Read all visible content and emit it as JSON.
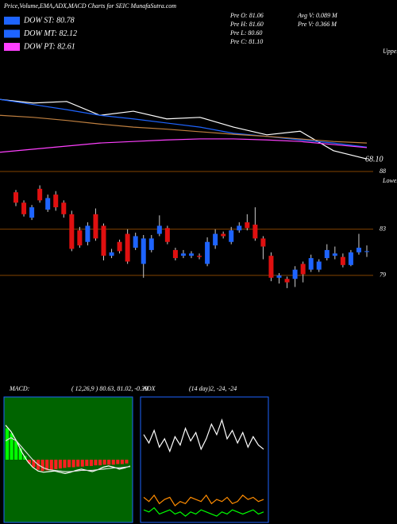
{
  "header": {
    "title": "Price,Volume,EMA,ADX,MACD Charts for SEIC MunafaSutra.com",
    "legend": [
      {
        "name": "DOW ST: 80.78",
        "color": "#1e64ff"
      },
      {
        "name": "DOW MT: 82.12",
        "color": "#1e64ff"
      },
      {
        "name": "DOW PT: 82.61",
        "color": "#ff40ff"
      }
    ],
    "stats": [
      "Pre O: 81.06",
      "Pre H: 81.60",
      "Pre L: 80.60",
      "Pre C: 81.10",
      "Avg V: 0.089 M",
      "Pre V: 0.366 M"
    ]
  },
  "chart_data": [
    {
      "type": "line",
      "label": "Upper",
      "annotation": "68.10",
      "ylim": [
        66,
        90
      ],
      "series": [
        {
          "color": "#ffffff",
          "values": [
            79.9,
            79.2,
            79.5,
            76.8,
            77.6,
            76.1,
            76.4,
            74.5,
            73.0,
            73.7,
            69.9,
            68.3
          ]
        },
        {
          "color": "#1e64ff",
          "values": [
            79.9,
            78.9,
            77.9,
            76.8,
            76.1,
            75.3,
            74.5,
            73.3,
            72.7,
            72.0,
            71.4,
            70.6
          ]
        },
        {
          "color": "#c08040",
          "values": [
            76.8,
            76.4,
            75.8,
            75.1,
            74.5,
            74.1,
            73.6,
            73.1,
            72.7,
            72.2,
            71.7,
            71.4
          ]
        },
        {
          "color": "#ff40ff",
          "values": [
            69.6,
            70.2,
            70.8,
            71.4,
            71.7,
            72.0,
            72.2,
            72.2,
            72.0,
            71.7,
            71.1,
            70.5
          ]
        }
      ]
    },
    {
      "type": "candlestick",
      "label": "Lower",
      "ylim": [
        77,
        88
      ],
      "yticks": [
        88,
        83,
        79
      ],
      "up_color": "#1e64ff",
      "down_color": "#e01010",
      "open": [
        86.2,
        85.3,
        84.0,
        86.5,
        84.7,
        86.0,
        85.3,
        84.3,
        82.9,
        81.9,
        84.3,
        83.3,
        80.7,
        81.9,
        82.6,
        81.4,
        80.0,
        81.2,
        82.6,
        83.1,
        81.2,
        80.7,
        80.7,
        80.7,
        80.0,
        81.6,
        82.6,
        81.9,
        82.9,
        83.6,
        83.4,
        82.2,
        80.7,
        78.8,
        78.7,
        78.7,
        80.0,
        79.5,
        79.5,
        80.5,
        80.7,
        80.6,
        79.9,
        81.0,
        81.06
      ],
      "high": [
        86.4,
        85.5,
        85.1,
        86.8,
        86.0,
        86.3,
        85.5,
        84.6,
        83.2,
        83.6,
        84.8,
        83.5,
        81.3,
        82.1,
        83.0,
        82.7,
        82.5,
        82.5,
        84.2,
        83.3,
        81.4,
        81.2,
        81.1,
        80.9,
        82.3,
        83.0,
        82.8,
        83.2,
        83.6,
        84.3,
        84.9,
        82.4,
        81.0,
        79.2,
        78.9,
        79.8,
        80.2,
        80.8,
        80.4,
        81.7,
        81.5,
        80.9,
        81.2,
        82.6,
        81.6
      ],
      "low": [
        85.0,
        84.1,
        83.8,
        85.3,
        84.5,
        84.6,
        84.0,
        81.1,
        81.4,
        81.6,
        82.0,
        80.3,
        80.5,
        80.9,
        80.0,
        81.2,
        78.8,
        81.0,
        82.4,
        81.7,
        80.3,
        80.5,
        80.5,
        80.4,
        79.8,
        81.3,
        82.2,
        81.7,
        82.7,
        82.9,
        82.0,
        80.4,
        78.5,
        78.3,
        77.9,
        78.0,
        78.4,
        79.3,
        79.3,
        80.3,
        80.4,
        79.7,
        79.8,
        80.8,
        80.6
      ],
      "close": [
        85.3,
        84.3,
        84.9,
        85.5,
        85.7,
        84.9,
        84.3,
        81.3,
        81.6,
        83.3,
        82.2,
        80.7,
        81.0,
        81.1,
        80.2,
        82.4,
        82.2,
        82.2,
        83.3,
        81.9,
        80.5,
        80.9,
        80.9,
        80.6,
        81.9,
        82.6,
        82.4,
        82.9,
        83.3,
        83.1,
        82.2,
        81.5,
        78.8,
        79.0,
        78.4,
        79.5,
        79.1,
        80.5,
        80.2,
        81.2,
        80.9,
        79.9,
        81.0,
        81.4,
        81.1
      ]
    },
    {
      "type": "macd",
      "title": "MACD:",
      "subtitle": "( 12,26,9 ) 80.63, 81.02, -0.39",
      "ylim": [
        -1,
        1
      ],
      "background": "#006400",
      "bars": [
        0.5,
        0.42,
        0.3,
        0.18,
        0.06,
        -0.06,
        -0.12,
        -0.16,
        -0.18,
        -0.17,
        -0.16,
        -0.15,
        -0.14,
        -0.13,
        -0.12,
        -0.12,
        -0.11,
        -0.11,
        -0.1,
        -0.1,
        -0.09,
        -0.09,
        -0.08,
        -0.08,
        -0.08,
        -0.07,
        -0.07,
        -0.06
      ],
      "series": [
        {
          "color": "#ffffff",
          "values": [
            0.55,
            0.45,
            0.3,
            0.12,
            -0.02,
            -0.12,
            -0.18,
            -0.2,
            -0.19,
            -0.18,
            -0.2,
            -0.22,
            -0.2,
            -0.17,
            -0.15,
            -0.17,
            -0.19,
            -0.16,
            -0.12,
            -0.1,
            -0.12,
            -0.15,
            -0.13,
            -0.1
          ]
        },
        {
          "color": "#dddddd",
          "values": [
            0.3,
            0.35,
            0.3,
            0.2,
            0.1,
            0.0,
            -0.08,
            -0.13,
            -0.16,
            -0.17,
            -0.18,
            -0.19,
            -0.19,
            -0.18,
            -0.17,
            -0.17,
            -0.17,
            -0.16,
            -0.15,
            -0.14,
            -0.13,
            -0.13,
            -0.12,
            -0.11
          ]
        }
      ]
    },
    {
      "type": "adx",
      "title": "ADX",
      "subtitle": "(14 day)2, -24, -24",
      "ylim": [
        0,
        60
      ],
      "series": [
        {
          "color": "#ffffff",
          "values": [
            42,
            38,
            44,
            36,
            40,
            34,
            41,
            37,
            45,
            39,
            43,
            35,
            40,
            47,
            42,
            49,
            40,
            44,
            38,
            43,
            36,
            41,
            37,
            35
          ]
        },
        {
          "color": "#ff8c00",
          "values": [
            12,
            10,
            13,
            9,
            11,
            12,
            8,
            10,
            9,
            12,
            11,
            10,
            13,
            9,
            11,
            10,
            12,
            9,
            10,
            13,
            11,
            12,
            10,
            11
          ]
        },
        {
          "color": "#00ff00",
          "values": [
            6,
            5,
            7,
            4,
            5,
            6,
            4,
            5,
            3,
            5,
            4,
            6,
            5,
            4,
            3,
            5,
            4,
            6,
            5,
            4,
            5,
            6,
            4,
            5
          ]
        }
      ]
    }
  ]
}
